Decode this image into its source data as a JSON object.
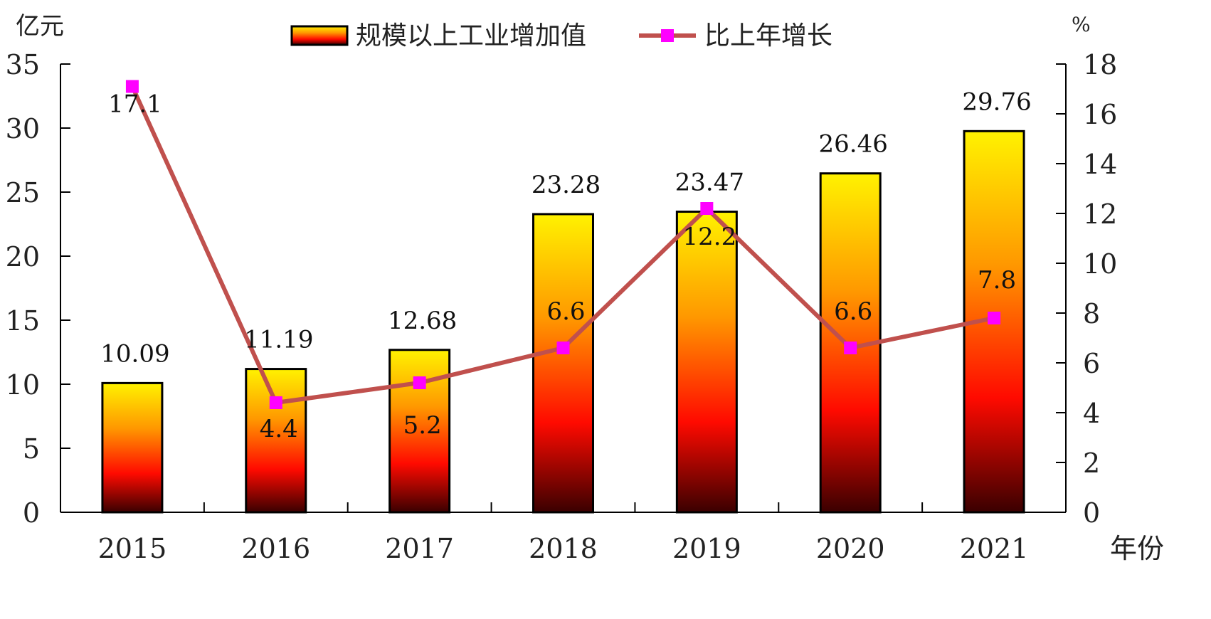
{
  "chart_data": {
    "type": "bar",
    "title": "",
    "categories": [
      "2015",
      "2016",
      "2017",
      "2018",
      "2019",
      "2020",
      "2021"
    ],
    "series": [
      {
        "name": "规模以上工业增加值",
        "type": "bar",
        "axis": "left",
        "values": [
          10.09,
          11.19,
          12.68,
          23.28,
          23.47,
          26.46,
          29.76
        ],
        "labels": [
          "10.09",
          "11.19",
          "12.68",
          "23.28",
          "23.47",
          "26.46",
          "29.76"
        ]
      },
      {
        "name": "比上年增长",
        "type": "line",
        "axis": "right",
        "color": "#c0504d",
        "marker_color": "#ff00ff",
        "values": [
          17.1,
          4.4,
          5.2,
          6.6,
          12.2,
          6.6,
          7.8
        ],
        "labels": [
          "17.1",
          "4.4",
          "5.2",
          "6.6",
          "12.2",
          "6.6",
          "7.8"
        ]
      }
    ],
    "y_left": {
      "unit": "亿元",
      "ylim": [
        0,
        35
      ],
      "ticks": [
        "0",
        "5",
        "10",
        "15",
        "20",
        "25",
        "30",
        "35"
      ]
    },
    "y_right": {
      "unit": "%",
      "ylim": [
        0,
        18
      ],
      "ticks": [
        "0",
        "2",
        "4",
        "6",
        "8",
        "10",
        "12",
        "14",
        "16",
        "18"
      ]
    },
    "xlabel": "年份",
    "legend": "top-center",
    "grid": false
  }
}
